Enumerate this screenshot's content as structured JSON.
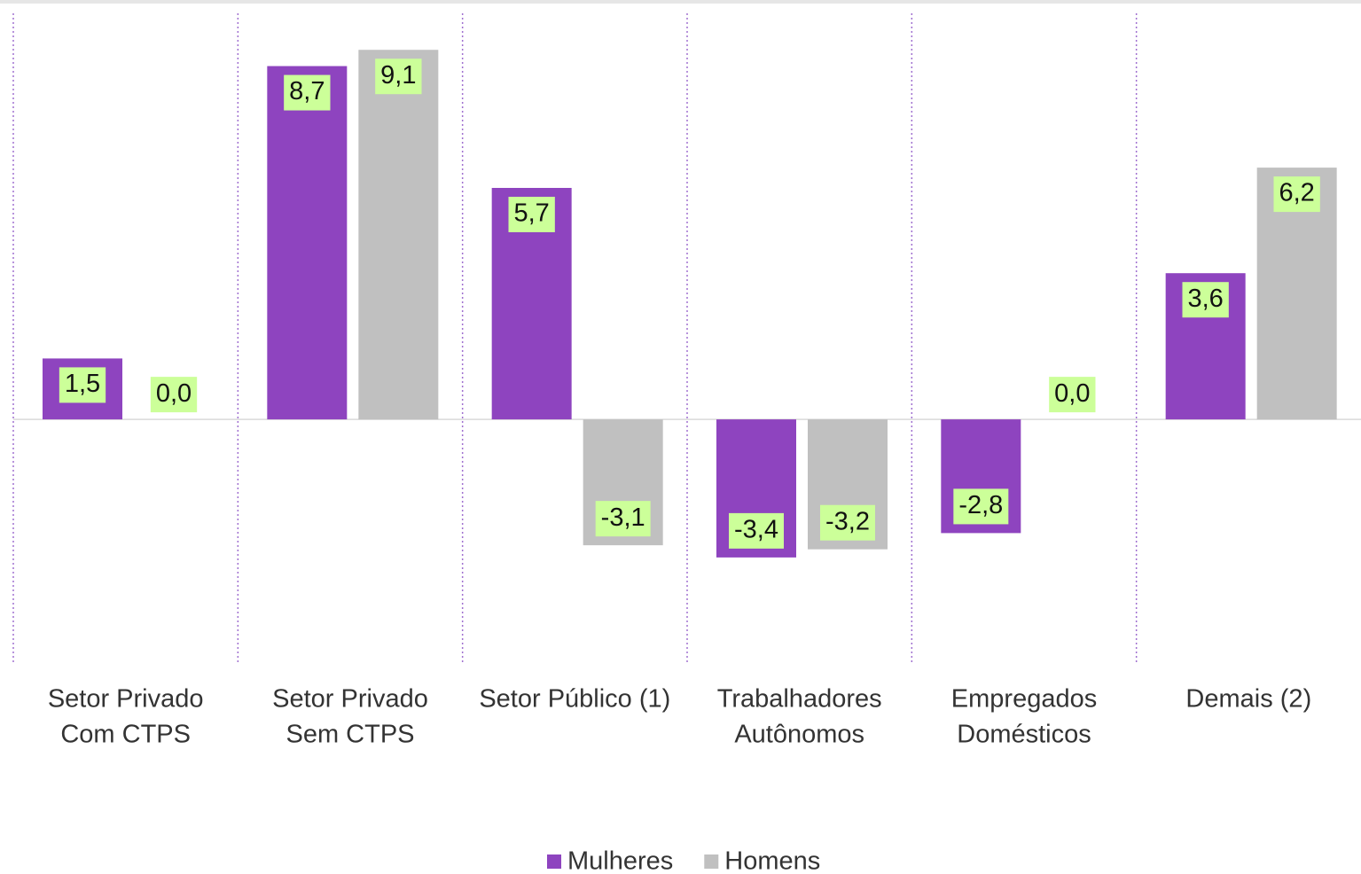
{
  "chart_data": {
    "type": "bar",
    "categories": [
      [
        "Setor Privado",
        "Com CTPS"
      ],
      [
        "Setor Privado",
        "Sem CTPS"
      ],
      [
        "Setor Público (1)"
      ],
      [
        "Trabalhadores",
        "Autônomos"
      ],
      [
        "Empregados",
        "Domésticos"
      ],
      [
        "Demais (2)"
      ]
    ],
    "series": [
      {
        "name": "Mulheres",
        "color": "#8e44bf",
        "values": [
          1.5,
          8.7,
          5.7,
          -3.4,
          -2.8,
          3.6
        ],
        "value_labels": [
          "1,5",
          "8,7",
          "5,7",
          "-3,4",
          "-2,8",
          "3,6"
        ]
      },
      {
        "name": "Homens",
        "color": "#c0c0c0",
        "values": [
          0.0,
          9.1,
          -3.1,
          -3.2,
          0.0,
          6.2
        ],
        "value_labels": [
          "0,0",
          "9,1",
          "-3,1",
          "-3,2",
          "0,0",
          "6,2"
        ]
      }
    ],
    "ylim": [
      -6,
      10
    ],
    "legend": "bottom"
  }
}
